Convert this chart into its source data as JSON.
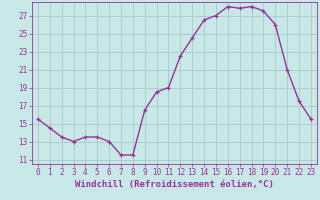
{
  "hours": [
    0,
    1,
    2,
    3,
    4,
    5,
    6,
    7,
    8,
    9,
    10,
    11,
    12,
    13,
    14,
    15,
    16,
    17,
    18,
    19,
    20,
    21,
    22,
    23
  ],
  "values": [
    15.5,
    14.5,
    13.5,
    13.0,
    13.5,
    13.5,
    13.0,
    11.5,
    11.5,
    16.5,
    18.5,
    19.0,
    22.5,
    24.5,
    26.5,
    27.0,
    28.0,
    27.8,
    28.0,
    27.5,
    26.0,
    21.0,
    17.5,
    15.5
  ],
  "line_color": "#993399",
  "marker": "+",
  "bg_color": "#c8e8e8",
  "grid_color": "#aacaca",
  "xlabel": "Windchill (Refroidissement éolien,°C)",
  "yticks": [
    11,
    13,
    15,
    17,
    19,
    21,
    23,
    25,
    27
  ],
  "xticks": [
    0,
    1,
    2,
    3,
    4,
    5,
    6,
    7,
    8,
    9,
    10,
    11,
    12,
    13,
    14,
    15,
    16,
    17,
    18,
    19,
    20,
    21,
    22,
    23
  ],
  "ylim": [
    10.5,
    28.5
  ],
  "xlim": [
    -0.5,
    23.5
  ],
  "xlabel_fontsize": 6.5,
  "tick_fontsize": 5.5,
  "line_width": 1.0,
  "marker_size": 3.5
}
